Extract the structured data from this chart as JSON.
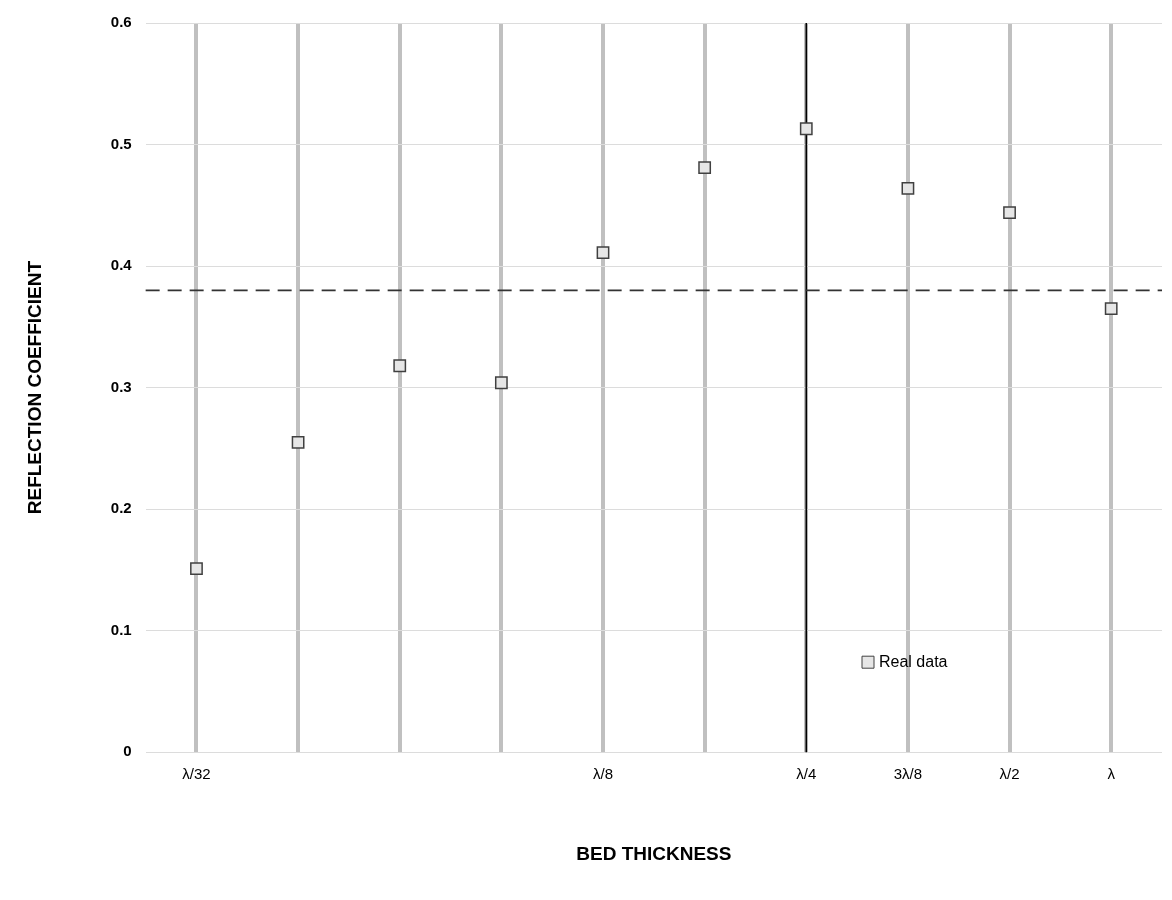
{
  "chart_data": {
    "type": "scatter",
    "xlabel": "BED THICKNESS",
    "ylabel": "REFLECTION COEFFICIENT",
    "categories": [
      "λ/32",
      null,
      null,
      null,
      "λ/8",
      null,
      "λ/4",
      "3λ/8",
      "λ/2",
      "λ"
    ],
    "series": [
      {
        "name": "Real data",
        "color": "#e6e6e6",
        "values": [
          0.151,
          0.255,
          0.318,
          0.304,
          0.411,
          0.481,
          0.513,
          0.464,
          0.444,
          0.365
        ]
      }
    ],
    "ylim": [
      0,
      0.6
    ],
    "yticks": [
      0,
      0.1,
      0.2,
      0.3,
      0.4,
      0.5,
      0.6
    ],
    "ref_lines": [
      {
        "axis": "x",
        "value": "λ/4",
        "color": "#000000",
        "line_style": "solid"
      },
      {
        "axis": "y",
        "value": 0.38,
        "color": "#333333",
        "line_style": "dashed"
      }
    ],
    "grid": true,
    "legend": "bottom right",
    "marker": "square"
  }
}
